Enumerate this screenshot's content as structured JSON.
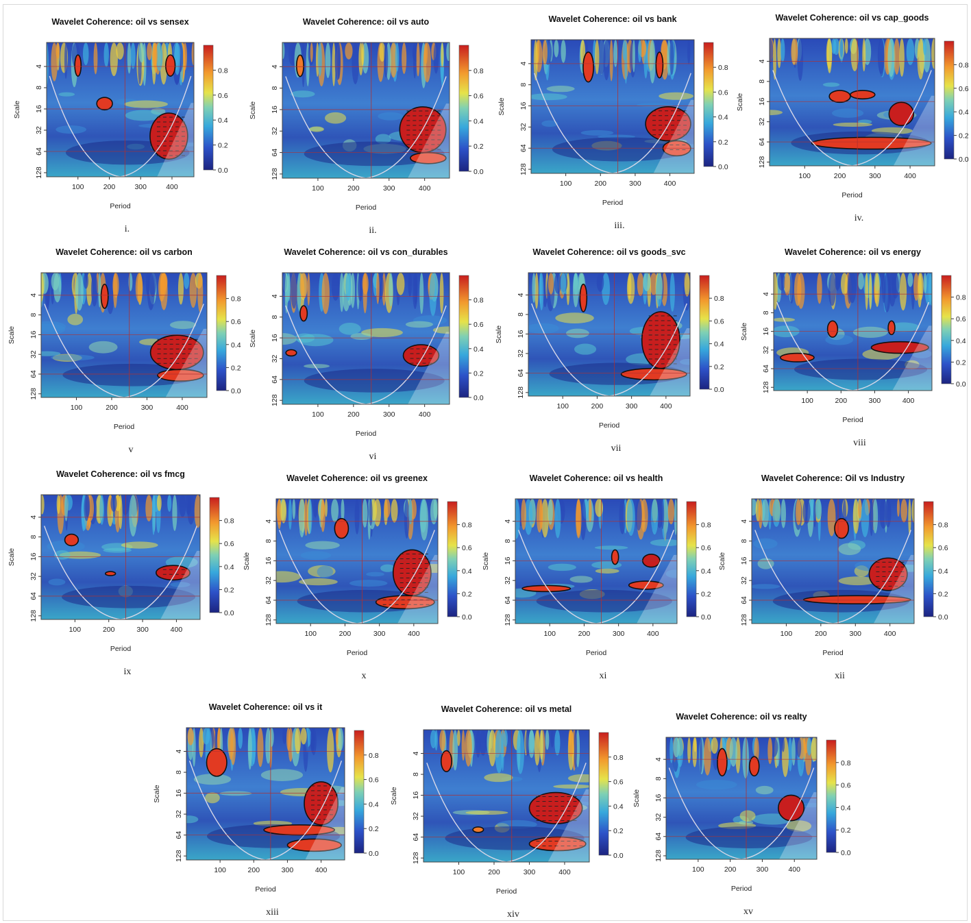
{
  "chart_data": [
    {
      "type": "heatmap",
      "title": "Wavelet Coherence: oil vs sensex",
      "xlabel": "Period",
      "ylabel": "Scale",
      "panel_label": "i.",
      "x_ticks": [
        "100",
        "200",
        "300",
        "400"
      ],
      "y_ticks": [
        "4",
        "8",
        "16",
        "32",
        "64",
        "128"
      ],
      "colorbar_ticks": [
        "0.0",
        "0.2",
        "0.4",
        "0.6",
        "0.8"
      ],
      "zlim": [
        0,
        1
      ],
      "regions": [
        {
          "x": [
            330,
            450
          ],
          "y": [
            20,
            90
          ],
          "level": 0.9
        },
        {
          "x": [
            160,
            210
          ],
          "y": [
            12,
            18
          ],
          "level": 0.85
        },
        {
          "x": [
            90,
            110
          ],
          "y": [
            3,
            6
          ],
          "level": 0.85
        },
        {
          "x": [
            380,
            410
          ],
          "y": [
            3,
            6
          ],
          "level": 0.85
        }
      ]
    },
    {
      "type": "heatmap",
      "title": "Wavelet Coherence: oil vs auto",
      "xlabel": "Period",
      "ylabel": "Scale",
      "panel_label": "ii.",
      "x_ticks": [
        "100",
        "200",
        "300",
        "400"
      ],
      "y_ticks": [
        "4",
        "8",
        "16",
        "32",
        "64",
        "128"
      ],
      "colorbar_ticks": [
        "0.0",
        "0.2",
        "0.4",
        "0.6",
        "0.8"
      ],
      "zlim": [
        0,
        1
      ],
      "regions": [
        {
          "x": [
            330,
            460
          ],
          "y": [
            16,
            70
          ],
          "level": 0.9
        },
        {
          "x": [
            360,
            460
          ],
          "y": [
            70,
            100
          ],
          "level": 0.85
        },
        {
          "x": [
            40,
            60
          ],
          "y": [
            3,
            6
          ],
          "level": 0.8
        }
      ]
    },
    {
      "type": "heatmap",
      "title": "Wavelet Coherence: oil vs bank",
      "xlabel": "Period",
      "ylabel": "Scale",
      "panel_label": "iii.",
      "x_ticks": [
        "100",
        "200",
        "300",
        "400"
      ],
      "y_ticks": [
        "4",
        "8",
        "16",
        "32",
        "64",
        "128"
      ],
      "colorbar_ticks": [
        "0.0",
        "0.2",
        "0.4",
        "0.6",
        "0.8"
      ],
      "zlim": [
        0,
        1
      ],
      "regions": [
        {
          "x": [
            330,
            460
          ],
          "y": [
            18,
            55
          ],
          "level": 0.9
        },
        {
          "x": [
            380,
            460
          ],
          "y": [
            55,
            90
          ],
          "level": 0.85
        },
        {
          "x": [
            150,
            180
          ],
          "y": [
            3,
            8
          ],
          "level": 0.85
        },
        {
          "x": [
            360,
            380
          ],
          "y": [
            3,
            7
          ],
          "level": 0.85
        }
      ]
    },
    {
      "type": "heatmap",
      "title": "Wavelet Coherence: oil vs cap_goods",
      "xlabel": "Period",
      "ylabel": "Scale",
      "panel_label": "iv.",
      "x_ticks": [
        "100",
        "200",
        "300",
        "400"
      ],
      "y_ticks": [
        "4",
        "8",
        "16",
        "32",
        "64",
        "128"
      ],
      "colorbar_ticks": [
        "0.0",
        "0.2",
        "0.4",
        "0.6",
        "0.8"
      ],
      "zlim": [
        0,
        1
      ],
      "regions": [
        {
          "x": [
            120,
            460
          ],
          "y": [
            60,
            90
          ],
          "level": 0.85
        },
        {
          "x": [
            340,
            410
          ],
          "y": [
            18,
            40
          ],
          "level": 0.9
        },
        {
          "x": [
            170,
            230
          ],
          "y": [
            12,
            18
          ],
          "level": 0.85
        },
        {
          "x": [
            230,
            300
          ],
          "y": [
            12,
            16
          ],
          "level": 0.85
        }
      ]
    },
    {
      "type": "heatmap",
      "title": "Wavelet Coherence: oil vs carbon",
      "xlabel": "Period",
      "ylabel": "Scale",
      "panel_label": "v",
      "x_ticks": [
        "100",
        "200",
        "300",
        "400"
      ],
      "y_ticks": [
        "4",
        "8",
        "16",
        "32",
        "64",
        "128"
      ],
      "colorbar_ticks": [
        "0.0",
        "0.2",
        "0.4",
        "0.6",
        "0.8"
      ],
      "zlim": [
        0,
        1
      ],
      "regions": [
        {
          "x": [
            310,
            460
          ],
          "y": [
            18,
            60
          ],
          "level": 0.9
        },
        {
          "x": [
            330,
            460
          ],
          "y": [
            60,
            90
          ],
          "level": 0.85
        },
        {
          "x": [
            170,
            190
          ],
          "y": [
            3,
            7
          ],
          "level": 0.85
        }
      ]
    },
    {
      "type": "heatmap",
      "title": "Wavelet Coherence: oil vs con_durables",
      "xlabel": "Period",
      "ylabel": "Scale",
      "panel_label": "vi",
      "x_ticks": [
        "100",
        "200",
        "300",
        "400"
      ],
      "y_ticks": [
        "4",
        "8",
        "16",
        "32",
        "64",
        "128"
      ],
      "colorbar_ticks": [
        "0.0",
        "0.2",
        "0.4",
        "0.6",
        "0.8"
      ],
      "zlim": [
        0,
        1
      ],
      "regions": [
        {
          "x": [
            340,
            440
          ],
          "y": [
            22,
            45
          ],
          "level": 0.9
        },
        {
          "x": [
            10,
            40
          ],
          "y": [
            26,
            32
          ],
          "level": 0.85
        },
        {
          "x": [
            50,
            70
          ],
          "y": [
            6,
            10
          ],
          "level": 0.85
        }
      ]
    },
    {
      "type": "heatmap",
      "title": "Wavelet Coherence: oil vs goods_svc",
      "xlabel": "Period",
      "ylabel": "Scale",
      "panel_label": "vii",
      "x_ticks": [
        "100",
        "200",
        "300",
        "400"
      ],
      "y_ticks": [
        "4",
        "8",
        "16",
        "32",
        "64",
        "128"
      ],
      "colorbar_ticks": [
        "0.0",
        "0.2",
        "0.4",
        "0.6",
        "0.8"
      ],
      "zlim": [
        0,
        1
      ],
      "regions": [
        {
          "x": [
            330,
            440
          ],
          "y": [
            8,
            60
          ],
          "level": 0.9
        },
        {
          "x": [
            270,
            460
          ],
          "y": [
            60,
            90
          ],
          "level": 0.85
        },
        {
          "x": [
            150,
            170
          ],
          "y": [
            3,
            8
          ],
          "level": 0.85
        }
      ]
    },
    {
      "type": "heatmap",
      "title": "Wavelet Coherence: oil vs energy",
      "xlabel": "Period",
      "ylabel": "Scale",
      "panel_label": "viii",
      "x_ticks": [
        "100",
        "200",
        "300",
        "400"
      ],
      "y_ticks": [
        "4",
        "8",
        "16",
        "32",
        "64",
        "128"
      ],
      "colorbar_ticks": [
        "0.0",
        "0.2",
        "0.4",
        "0.6",
        "0.8"
      ],
      "zlim": [
        0,
        1
      ],
      "regions": [
        {
          "x": [
            290,
            460
          ],
          "y": [
            26,
            40
          ],
          "level": 0.9
        },
        {
          "x": [
            20,
            120
          ],
          "y": [
            40,
            55
          ],
          "level": 0.85
        },
        {
          "x": [
            160,
            190
          ],
          "y": [
            12,
            22
          ],
          "level": 0.85
        },
        {
          "x": [
            340,
            360
          ],
          "y": [
            12,
            20
          ],
          "level": 0.85
        }
      ]
    },
    {
      "type": "heatmap",
      "title": "Wavelet Coherence: oil vs fmcg",
      "xlabel": "Period",
      "ylabel": "Scale",
      "panel_label": "ix",
      "x_ticks": [
        "100",
        "200",
        "300",
        "400"
      ],
      "y_ticks": [
        "4",
        "8",
        "16",
        "32",
        "64",
        "128"
      ],
      "colorbar_ticks": [
        "0.0",
        "0.2",
        "0.4",
        "0.6",
        "0.8"
      ],
      "zlim": [
        0,
        1
      ],
      "regions": [
        {
          "x": [
            340,
            440
          ],
          "y": [
            24,
            40
          ],
          "level": 0.9
        },
        {
          "x": [
            190,
            220
          ],
          "y": [
            30,
            34
          ],
          "level": 0.85
        },
        {
          "x": [
            70,
            110
          ],
          "y": [
            8,
            12
          ],
          "level": 0.85
        }
      ]
    },
    {
      "type": "heatmap",
      "title": "Wavelet Coherence: oil vs greenex",
      "xlabel": "Period",
      "ylabel": "Scale",
      "panel_label": "x",
      "x_ticks": [
        "100",
        "200",
        "300",
        "400"
      ],
      "y_ticks": [
        "4",
        "8",
        "16",
        "32",
        "64",
        "128"
      ],
      "colorbar_ticks": [
        "0.0",
        "0.2",
        "0.4",
        "0.6",
        "0.8"
      ],
      "zlim": [
        0,
        1
      ],
      "regions": [
        {
          "x": [
            340,
            450
          ],
          "y": [
            12,
            60
          ],
          "level": 0.9
        },
        {
          "x": [
            290,
            460
          ],
          "y": [
            60,
            95
          ],
          "level": 0.85
        },
        {
          "x": [
            170,
            210
          ],
          "y": [
            4,
            8
          ],
          "level": 0.85
        }
      ]
    },
    {
      "type": "heatmap",
      "title": "Wavelet Coherence: oil vs health",
      "xlabel": "Period",
      "ylabel": "Scale",
      "panel_label": "xi",
      "x_ticks": [
        "100",
        "200",
        "300",
        "400"
      ],
      "y_ticks": [
        "4",
        "8",
        "16",
        "32",
        "64",
        "128"
      ],
      "colorbar_ticks": [
        "0.0",
        "0.2",
        "0.4",
        "0.6",
        "0.8"
      ],
      "zlim": [
        0,
        1
      ],
      "regions": [
        {
          "x": [
            20,
            160
          ],
          "y": [
            42,
            52
          ],
          "level": 0.85
        },
        {
          "x": [
            370,
            420
          ],
          "y": [
            14,
            22
          ],
          "level": 0.9
        },
        {
          "x": [
            280,
            300
          ],
          "y": [
            12,
            20
          ],
          "level": 0.85
        },
        {
          "x": [
            330,
            430
          ],
          "y": [
            36,
            48
          ],
          "level": 0.85
        }
      ]
    },
    {
      "type": "heatmap",
      "title": "Wavelet Coherence: Oil vs Industry",
      "xlabel": "Period",
      "ylabel": "Scale",
      "panel_label": "xii",
      "x_ticks": [
        "100",
        "200",
        "300",
        "400"
      ],
      "y_ticks": [
        "4",
        "8",
        "16",
        "32",
        "64",
        "128"
      ],
      "colorbar_ticks": [
        "0.0",
        "0.2",
        "0.4",
        "0.6",
        "0.8"
      ],
      "zlim": [
        0,
        1
      ],
      "regions": [
        {
          "x": [
            340,
            450
          ],
          "y": [
            16,
            50
          ],
          "level": 0.9
        },
        {
          "x": [
            150,
            460
          ],
          "y": [
            60,
            80
          ],
          "level": 0.85
        },
        {
          "x": [
            240,
            280
          ],
          "y": [
            4,
            8
          ],
          "level": 0.85
        }
      ]
    },
    {
      "type": "heatmap",
      "title": "Wavelet Coherence: oil vs it",
      "xlabel": "Period",
      "ylabel": "Scale",
      "panel_label": "xiii",
      "x_ticks": [
        "100",
        "200",
        "300",
        "400"
      ],
      "y_ticks": [
        "4",
        "8",
        "16",
        "32",
        "64",
        "128"
      ],
      "colorbar_ticks": [
        "0.0",
        "0.2",
        "0.4",
        "0.6",
        "0.8"
      ],
      "zlim": [
        0,
        1
      ],
      "regions": [
        {
          "x": [
            350,
            450
          ],
          "y": [
            12,
            50
          ],
          "level": 0.9
        },
        {
          "x": [
            230,
            440
          ],
          "y": [
            50,
            70
          ],
          "level": 0.85
        },
        {
          "x": [
            300,
            460
          ],
          "y": [
            80,
            120
          ],
          "level": 0.85
        },
        {
          "x": [
            60,
            120
          ],
          "y": [
            4,
            10
          ],
          "level": 0.85
        }
      ]
    },
    {
      "type": "heatmap",
      "title": "Wavelet Coherence: oil vs metal",
      "xlabel": "Period",
      "ylabel": "Scale",
      "panel_label": "xiv",
      "x_ticks": [
        "100",
        "200",
        "300",
        "400"
      ],
      "y_ticks": [
        "4",
        "8",
        "16",
        "32",
        "64",
        "128"
      ],
      "colorbar_ticks": [
        "0.0",
        "0.2",
        "0.4",
        "0.6",
        "0.8"
      ],
      "zlim": [
        0,
        1
      ],
      "regions": [
        {
          "x": [
            300,
            450
          ],
          "y": [
            16,
            45
          ],
          "level": 0.9
        },
        {
          "x": [
            300,
            460
          ],
          "y": [
            70,
            110
          ],
          "level": 0.85
        },
        {
          "x": [
            140,
            170
          ],
          "y": [
            50,
            60
          ],
          "level": 0.8
        },
        {
          "x": [
            50,
            80
          ],
          "y": [
            4,
            8
          ],
          "level": 0.85
        }
      ]
    },
    {
      "type": "heatmap",
      "title": "Wavelet Coherence: oil vs realty",
      "xlabel": "Period",
      "ylabel": "Scale",
      "panel_label": "xv",
      "x_ticks": [
        "100",
        "200",
        "300",
        "400"
      ],
      "y_ticks": [
        "4",
        "8",
        "16",
        "32",
        "64",
        "128"
      ],
      "colorbar_ticks": [
        "0.0",
        "0.2",
        "0.4",
        "0.6",
        "0.8"
      ],
      "zlim": [
        0,
        1
      ],
      "regions": [
        {
          "x": [
            350,
            430
          ],
          "y": [
            16,
            40
          ],
          "level": 0.9
        },
        {
          "x": [
            160,
            190
          ],
          "y": [
            3,
            8
          ],
          "level": 0.85
        },
        {
          "x": [
            260,
            290
          ],
          "y": [
            4,
            8
          ],
          "level": 0.85
        }
      ]
    }
  ],
  "colors": {
    "high": "#c81e1e",
    "low": "#1c2b8a",
    "cone": "#d8d8e8",
    "gridline": "#b03030"
  }
}
